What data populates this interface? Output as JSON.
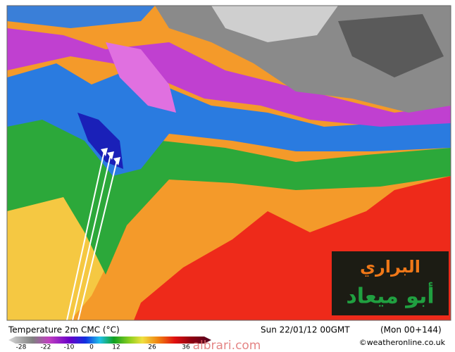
{
  "legend": {
    "title": "Temperature 2m CMC (°C)",
    "ticks": [
      "-28",
      "-22",
      "-10",
      "0",
      "12",
      "26",
      "36"
    ]
  },
  "header": {
    "date": "Sun 22/01/12 00GMT",
    "run": "(Mon 00+144)"
  },
  "credit": "©weatheronline.co.uk",
  "watermark": "albrari.com",
  "logo": {
    "line1": "البراري",
    "line2": "أبو ميعاد"
  }
}
